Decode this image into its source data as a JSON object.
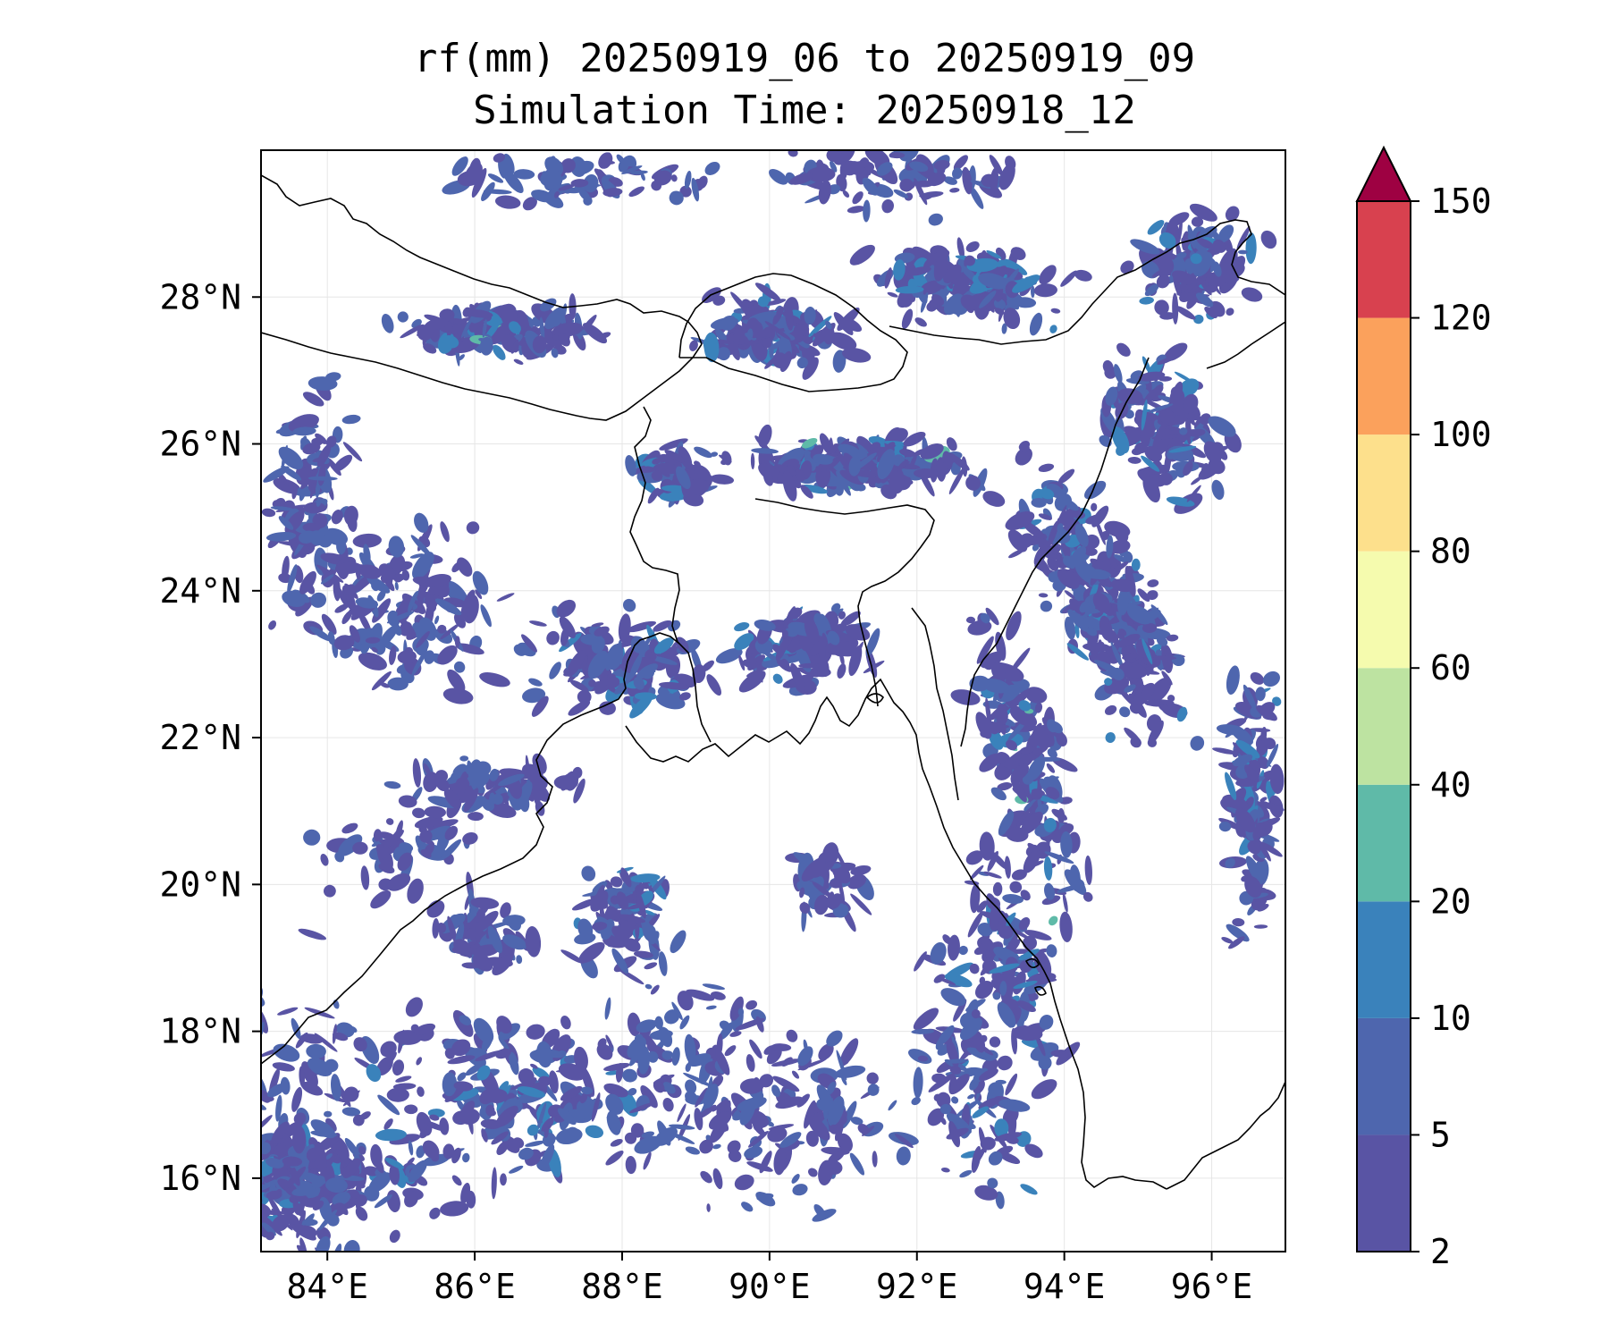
{
  "title": {
    "line1": "rf(mm) 20250919_06 to 20250919_09",
    "line2": "Simulation Time: 20250918_12"
  },
  "map": {
    "lon_range": [
      83.1,
      97.0
    ],
    "lat_range": [
      15.0,
      30.0
    ],
    "x_ticks": [
      "84°E",
      "86°E",
      "88°E",
      "90°E",
      "92°E",
      "94°E",
      "96°E"
    ],
    "x_tick_values": [
      84,
      86,
      88,
      90,
      92,
      94,
      96
    ],
    "y_ticks": [
      "16°N",
      "18°N",
      "20°N",
      "22°N",
      "24°N",
      "26°N",
      "28°N"
    ],
    "y_tick_values": [
      16,
      18,
      20,
      22,
      24,
      26,
      28
    ],
    "gridlines": true,
    "coastline_color": "#000000",
    "rain_colors": [
      "#5954a4",
      "#4e66ae",
      "#3a82bb",
      "#5fbaa8",
      "#bde3a1",
      "#f5fbae",
      "#fde08c",
      "#fba15c",
      "#d8414f",
      "#9e0142"
    ]
  },
  "colorbar": {
    "levels": [
      "2",
      "5",
      "10",
      "20",
      "40",
      "60",
      "80",
      "100",
      "120",
      "150"
    ],
    "colors": [
      "#5954a4",
      "#4e66ae",
      "#3a82bb",
      "#5fbaa8",
      "#bde3a1",
      "#f5fbae",
      "#fde08c",
      "#fba15c",
      "#d8414f"
    ],
    "extend_color": "#9e0142",
    "extend": "max"
  }
}
